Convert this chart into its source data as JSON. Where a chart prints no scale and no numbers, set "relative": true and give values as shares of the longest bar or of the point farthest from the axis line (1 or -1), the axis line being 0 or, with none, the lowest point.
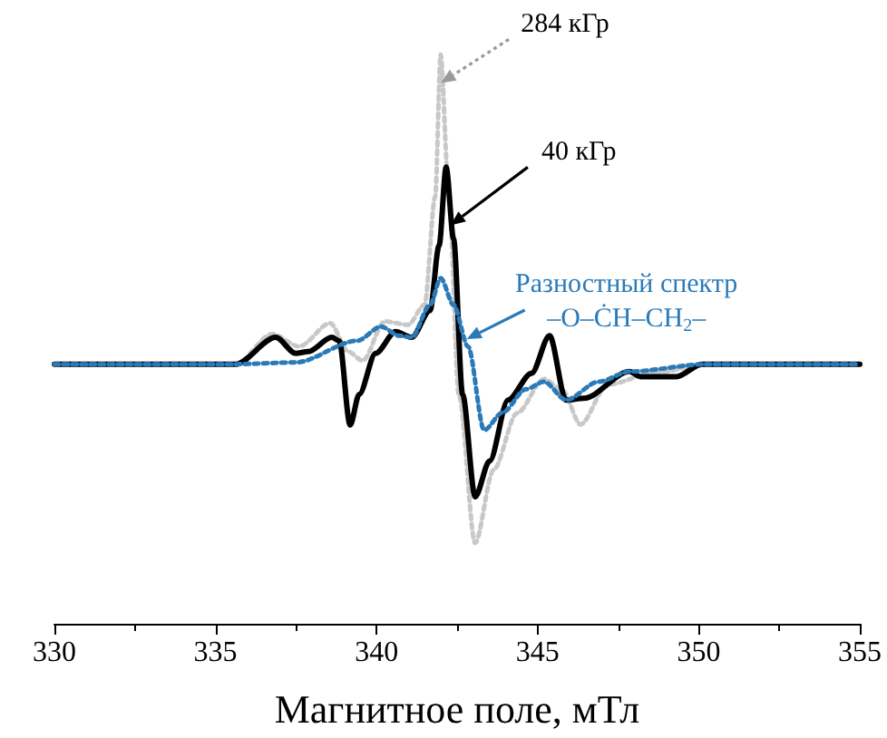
{
  "chart_data": {
    "type": "line",
    "relative": true,
    "xlabel": "Магнитное поле, мТл",
    "xlim": [
      330,
      355
    ],
    "xticks": [
      330,
      335,
      340,
      345,
      350,
      355
    ],
    "marker": "none",
    "tick_labels": "x",
    "series": [
      {
        "color": "#c8c8c8",
        "line_style": "dotted",
        "x": [
          330,
          335.63,
          336.76,
          337.6,
          338.56,
          339.12,
          339.57,
          340.25,
          340.98,
          341.49,
          341.82,
          341.99,
          342.22,
          342.56,
          343.06,
          343.63,
          344.36,
          345.2,
          345.77,
          346.33,
          347.17,
          348.58,
          350.27,
          355
        ],
        "values": [
          0.456,
          0.456,
          0.509,
          0.487,
          0.528,
          0.478,
          0.462,
          0.531,
          0.525,
          0.56,
          0.75,
          1.0,
          0.78,
          0.4,
          0.142,
          0.27,
          0.37,
          0.43,
          0.41,
          0.35,
          0.42,
          0.44,
          0.456,
          0.456
        ]
      },
      {
        "color": "#000000",
        "line_style": "solid",
        "x": [
          330,
          335.63,
          336.87,
          337.49,
          337.88,
          338.61,
          338.84,
          339.18,
          339.46,
          339.97,
          340.59,
          341.09,
          341.66,
          341.94,
          342.16,
          342.39,
          342.67,
          343.06,
          343.51,
          344.08,
          344.81,
          345.37,
          345.88,
          346.44,
          347.85,
          348.19,
          349.31,
          350.1,
          355
        ],
        "values": [
          0.456,
          0.456,
          0.503,
          0.475,
          0.478,
          0.503,
          0.497,
          0.349,
          0.403,
          0.475,
          0.513,
          0.503,
          0.55,
          0.664,
          0.802,
          0.676,
          0.403,
          0.223,
          0.286,
          0.393,
          0.44,
          0.506,
          0.393,
          0.396,
          0.443,
          0.434,
          0.434,
          0.456,
          0.456
        ]
      },
      {
        "color": "#2a7ab8",
        "line_style": "dotted",
        "x": [
          330,
          335.63,
          337.49,
          339.4,
          340.14,
          340.7,
          341.09,
          341.66,
          341.99,
          342.39,
          342.84,
          343.34,
          343.91,
          344.64,
          345.2,
          345.88,
          346.89,
          347.85,
          350.27,
          355
        ],
        "values": [
          0.456,
          0.456,
          0.459,
          0.497,
          0.522,
          0.506,
          0.503,
          0.56,
          0.607,
          0.56,
          0.487,
          0.34,
          0.371,
          0.412,
          0.425,
          0.393,
          0.425,
          0.443,
          0.456,
          0.456
        ]
      }
    ],
    "annotations": [
      {
        "text": "284 кГр",
        "x": 342.0,
        "y": 0.95
      },
      {
        "text": "40 кГр",
        "x": 342.3,
        "y": 0.7
      },
      {
        "text": "Разностный спектр",
        "x": 342.8,
        "y": 0.5
      },
      "–O–ĊH–CH$_{2}$–"
    ]
  }
}
